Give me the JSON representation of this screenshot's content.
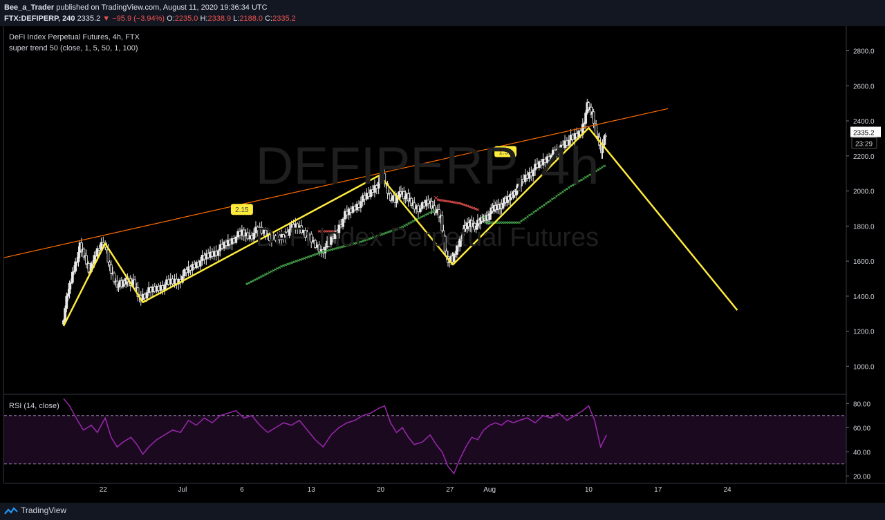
{
  "header": {
    "author": "Bee_a_Trader",
    "published": "published on TradingView.com, August 11, 2020 19:36:34 UTC",
    "symbol": "FTX:DEFIPERP, 240",
    "last": "2335.2",
    "change": "−95.9 (−3.94%)",
    "o_label": "O:",
    "o": "2235.0",
    "h_label": "H:",
    "h": "2338.9",
    "l_label": "L:",
    "l": "2188.0",
    "c_label": "C:",
    "c": "2335.2"
  },
  "chart_title": "DeFi Index Perpetual Futures, 4h, FTX",
  "indicator_label": "super trend 50 (close, 1, 5, 50, 1, 100)",
  "watermark": {
    "ticker": "DEFIPERP, 4h",
    "name": "DeFi Index Perpetual Futures"
  },
  "price_badge": "2335.2",
  "countdown_badge": "23:29",
  "rsi_label": "RSI (14, close)",
  "footer": {
    "brand": "TradingView"
  },
  "colors": {
    "background": "#000000",
    "header_bg": "#131722",
    "candle": "#e8e8e8",
    "pattern_line": "#ffeb3b",
    "trend_line": "#ff6d00",
    "supertrend_up": "#4caf50",
    "supertrend_down": "#ef5350",
    "rsi_line": "#9c27b0",
    "rsi_band": "#1b0a1f"
  },
  "chart_data": [
    {
      "type": "candlestick",
      "title": "DeFi Index Perpetual Futures, 4h, FTX",
      "y_ticks": [
        1000,
        1200,
        1400,
        1600,
        1800,
        2000,
        2200,
        2400,
        2600,
        2800
      ],
      "y_tick_labels": [
        "1000.0",
        "1200.0",
        "1400.0",
        "1600.0",
        "1800.0",
        "2000.0",
        "2200.0",
        "2400.0",
        "2600.0",
        "2800.0"
      ],
      "ylim": [
        840,
        2940
      ],
      "x_ticks": [
        {
          "label": "22",
          "day": 22
        },
        {
          "label": "Jul",
          "day": 30
        },
        {
          "label": "6",
          "day": 36
        },
        {
          "label": "13",
          "day": 43
        },
        {
          "label": "20",
          "day": 50
        },
        {
          "label": "27",
          "day": 57
        },
        {
          "label": "Aug",
          "day": 61
        },
        {
          "label": "10",
          "day": 71
        },
        {
          "label": "17",
          "day": 78
        },
        {
          "label": "24",
          "day": 85
        }
      ],
      "x_range_days": [
        12,
        97
      ],
      "price_path": [
        [
          18,
          1240
        ],
        [
          18.6,
          1420
        ],
        [
          19.2,
          1560
        ],
        [
          19.8,
          1680
        ],
        [
          20.3,
          1620
        ],
        [
          20.8,
          1540
        ],
        [
          21.4,
          1640
        ],
        [
          22.2,
          1720
        ],
        [
          22.8,
          1560
        ],
        [
          23.4,
          1480
        ],
        [
          24,
          1460
        ],
        [
          24.6,
          1500
        ],
        [
          25.2,
          1470
        ],
        [
          25.8,
          1390
        ],
        [
          26.6,
          1420
        ],
        [
          27.4,
          1440
        ],
        [
          28.2,
          1460
        ],
        [
          29,
          1480
        ],
        [
          29.8,
          1490
        ],
        [
          30.6,
          1540
        ],
        [
          31.4,
          1580
        ],
        [
          32.2,
          1610
        ],
        [
          33,
          1640
        ],
        [
          33.8,
          1660
        ],
        [
          34.6,
          1700
        ],
        [
          35.4,
          1730
        ],
        [
          36.2,
          1760
        ],
        [
          37,
          1740
        ],
        [
          37.8,
          1780
        ],
        [
          38.6,
          1760
        ],
        [
          39.4,
          1720
        ],
        [
          40.2,
          1740
        ],
        [
          41,
          1780
        ],
        [
          41.8,
          1800
        ],
        [
          42.6,
          1760
        ],
        [
          43.4,
          1700
        ],
        [
          44.2,
          1660
        ],
        [
          45,
          1700
        ],
        [
          45.8,
          1780
        ],
        [
          46.6,
          1860
        ],
        [
          47.4,
          1900
        ],
        [
          48.2,
          1940
        ],
        [
          49,
          1980
        ],
        [
          49.8,
          2040
        ],
        [
          50.4,
          2080
        ],
        [
          51,
          1980
        ],
        [
          51.6,
          1940
        ],
        [
          52.2,
          2000
        ],
        [
          52.8,
          1960
        ],
        [
          53.4,
          1920
        ],
        [
          54.2,
          1900
        ],
        [
          55,
          1940
        ],
        [
          55.6,
          1900
        ],
        [
          56.2,
          1840
        ],
        [
          56.8,
          1620
        ],
        [
          57.4,
          1600
        ],
        [
          58,
          1700
        ],
        [
          58.6,
          1780
        ],
        [
          59.2,
          1820
        ],
        [
          59.8,
          1800
        ],
        [
          60.4,
          1840
        ],
        [
          61,
          1860
        ],
        [
          61.6,
          1900
        ],
        [
          62.2,
          1920
        ],
        [
          62.8,
          1940
        ],
        [
          63.4,
          1980
        ],
        [
          64,
          2020
        ],
        [
          64.8,
          2080
        ],
        [
          65.6,
          2120
        ],
        [
          66.4,
          2160
        ],
        [
          67.2,
          2200
        ],
        [
          68,
          2220
        ],
        [
          68.8,
          2280
        ],
        [
          69.6,
          2300
        ],
        [
          70.4,
          2340
        ],
        [
          71,
          2480
        ],
        [
          71.5,
          2440
        ],
        [
          72,
          2300
        ],
        [
          72.4,
          2230
        ],
        [
          72.8,
          2335
        ]
      ],
      "pattern_zigzag": [
        [
          18,
          1230
        ],
        [
          22.2,
          1700
        ],
        [
          26,
          1365
        ],
        [
          49.9,
          2090
        ],
        [
          57.3,
          1580
        ],
        [
          71,
          2360
        ],
        [
          86,
          1320
        ]
      ],
      "pattern_labels": [
        {
          "text": "2.15",
          "day": 36,
          "price": 1895
        },
        {
          "text": "1.52",
          "day": 62.6,
          "price": 2225
        }
      ],
      "trend_line": [
        [
          12,
          1620
        ],
        [
          79,
          2470
        ]
      ],
      "supertrend_up_1": [
        [
          36.5,
          1470
        ],
        [
          40,
          1570
        ],
        [
          44,
          1650
        ],
        [
          48,
          1710
        ],
        [
          52,
          1790
        ],
        [
          55.6,
          1895
        ]
      ],
      "supertrend_down_1": [
        [
          43.8,
          1770
        ],
        [
          45.5,
          1770
        ]
      ],
      "supertrend_down_2": [
        [
          55.8,
          1950
        ],
        [
          58,
          1930
        ],
        [
          60,
          1890
        ]
      ],
      "supertrend_up_2": [
        [
          60.6,
          1820
        ],
        [
          64,
          1820
        ],
        [
          66.5,
          1920
        ],
        [
          69,
          2020
        ],
        [
          72.8,
          2150
        ]
      ],
      "supertrend_markers": [
        {
          "symbol": "×",
          "color": "#ef5350",
          "day": 55.6,
          "price": 1960
        },
        {
          "symbol": "×",
          "color": "#4caf50",
          "day": 60.4,
          "price": 1850
        }
      ]
    },
    {
      "type": "line",
      "title": "RSI (14, close)",
      "y_ticks": [
        20,
        40,
        60,
        80
      ],
      "y_tick_labels": [
        "20.00",
        "40.00",
        "60.00",
        "80.00"
      ],
      "ylim": [
        15,
        87
      ],
      "bands": [
        30,
        70
      ],
      "series": [
        {
          "values": [
            [
              18,
              84
            ],
            [
              18.6,
              78
            ],
            [
              19.4,
              66
            ],
            [
              20,
              58
            ],
            [
              20.8,
              62
            ],
            [
              21.4,
              56
            ],
            [
              22.2,
              68
            ],
            [
              22.8,
              52
            ],
            [
              23.4,
              44
            ],
            [
              24,
              48
            ],
            [
              24.8,
              52
            ],
            [
              25.4,
              46
            ],
            [
              26,
              38
            ],
            [
              26.6,
              44
            ],
            [
              27.4,
              50
            ],
            [
              28.2,
              54
            ],
            [
              29,
              58
            ],
            [
              29.8,
              56
            ],
            [
              30.6,
              66
            ],
            [
              31.4,
              62
            ],
            [
              32.2,
              68
            ],
            [
              33,
              64
            ],
            [
              33.8,
              70
            ],
            [
              34.6,
              72
            ],
            [
              35.4,
              74
            ],
            [
              36.2,
              68
            ],
            [
              37,
              70
            ],
            [
              37.8,
              62
            ],
            [
              38.6,
              56
            ],
            [
              39.4,
              60
            ],
            [
              40.2,
              64
            ],
            [
              41,
              62
            ],
            [
              41.8,
              66
            ],
            [
              42.6,
              58
            ],
            [
              43.4,
              50
            ],
            [
              44.2,
              44
            ],
            [
              45,
              54
            ],
            [
              45.8,
              60
            ],
            [
              46.6,
              64
            ],
            [
              47.4,
              66
            ],
            [
              48.2,
              70
            ],
            [
              49,
              72
            ],
            [
              49.8,
              76
            ],
            [
              50.4,
              78
            ],
            [
              51,
              64
            ],
            [
              51.6,
              56
            ],
            [
              52.2,
              60
            ],
            [
              52.8,
              52
            ],
            [
              53.4,
              46
            ],
            [
              54.2,
              48
            ],
            [
              55,
              54
            ],
            [
              55.6,
              46
            ],
            [
              56.2,
              40
            ],
            [
              56.8,
              28
            ],
            [
              57.4,
              22
            ],
            [
              58,
              34
            ],
            [
              58.6,
              44
            ],
            [
              59.2,
              52
            ],
            [
              59.8,
              50
            ],
            [
              60.4,
              58
            ],
            [
              61,
              62
            ],
            [
              61.6,
              64
            ],
            [
              62.2,
              62
            ],
            [
              62.8,
              66
            ],
            [
              63.4,
              64
            ],
            [
              64,
              66
            ],
            [
              64.8,
              68
            ],
            [
              65.6,
              64
            ],
            [
              66.4,
              70
            ],
            [
              67.2,
              68
            ],
            [
              68,
              72
            ],
            [
              68.8,
              66
            ],
            [
              69.6,
              70
            ],
            [
              70.4,
              74
            ],
            [
              71,
              78
            ],
            [
              71.6,
              66
            ],
            [
              72.2,
              44
            ],
            [
              72.8,
              54
            ]
          ]
        }
      ]
    }
  ]
}
